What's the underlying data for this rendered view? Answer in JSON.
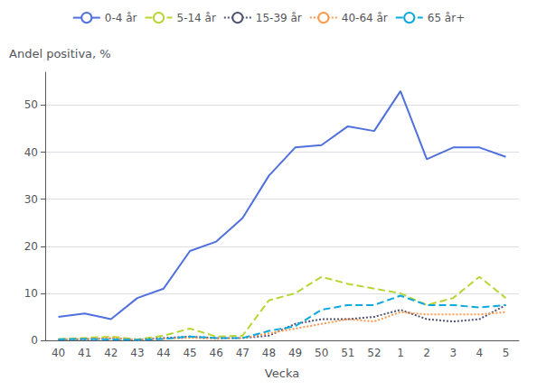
{
  "chart_data": {
    "type": "line",
    "xlabel": "Vecka",
    "ylabel": "Andel positiva, %",
    "categories": [
      40,
      41,
      42,
      43,
      44,
      45,
      46,
      47,
      48,
      49,
      50,
      51,
      52,
      1,
      2,
      3,
      4,
      5
    ],
    "series": [
      {
        "name": "0-4 år",
        "line_style": "solid",
        "values": [
          5.0,
          5.7,
          4.5,
          9.0,
          11.0,
          19.0,
          21.0,
          26.0,
          35.0,
          41.0,
          41.5,
          45.5,
          44.5,
          53.0,
          38.5,
          41.0,
          41.0,
          39.0
        ]
      },
      {
        "name": "5-14 år",
        "line_style": "dashed",
        "values": [
          0.3,
          0.5,
          0.8,
          0.2,
          1.0,
          2.5,
          0.8,
          1.0,
          8.5,
          10.0,
          13.5,
          12.0,
          11.0,
          10.0,
          7.5,
          9.0,
          13.5,
          9.0
        ]
      },
      {
        "name": "15-39 år",
        "line_style": "dotted",
        "values": [
          0.2,
          0.2,
          0.4,
          0.1,
          0.5,
          0.8,
          0.5,
          0.5,
          1.0,
          3.5,
          4.5,
          4.5,
          5.0,
          6.5,
          4.5,
          4.0,
          4.5,
          7.5
        ]
      },
      {
        "name": "40-64 år",
        "line_style": "dotted",
        "values": [
          0.2,
          0.3,
          0.5,
          0.1,
          0.3,
          0.5,
          0.3,
          0.5,
          1.5,
          2.5,
          3.5,
          4.5,
          4.0,
          6.0,
          5.5,
          5.5,
          5.5,
          6.0
        ]
      },
      {
        "name": "65 år+",
        "line_style": "dashed",
        "values": [
          0.2,
          0.3,
          0.2,
          0.1,
          0.3,
          0.8,
          0.5,
          0.5,
          2.0,
          3.0,
          6.5,
          7.5,
          7.5,
          9.5,
          7.5,
          7.5,
          7.0,
          7.5
        ]
      }
    ],
    "ylim": [
      0,
      57
    ],
    "yticks": [
      0,
      10,
      20,
      30,
      40,
      50
    ],
    "grid": true,
    "legend": "top"
  }
}
